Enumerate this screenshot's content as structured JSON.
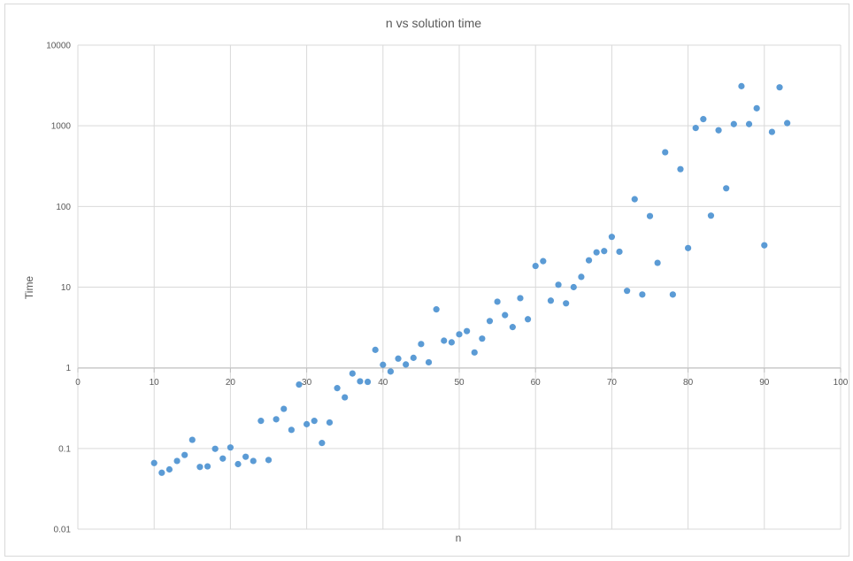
{
  "chart_data": {
    "type": "scatter",
    "title": "n vs solution time",
    "xlabel": "n",
    "ylabel": "Time",
    "xlim": [
      0,
      100
    ],
    "ylim": [
      0.01,
      10000
    ],
    "yscale": "log",
    "grid": true,
    "legend": "none",
    "xticks": [
      "0",
      "10",
      "20",
      "30",
      "40",
      "50",
      "60",
      "70",
      "80",
      "90",
      "100"
    ],
    "yticks": [
      "0.01",
      "0.1",
      "1",
      "10",
      "100",
      "1000",
      "10000"
    ],
    "marker_color": "#5b9bd5",
    "points": [
      {
        "x": 10,
        "y": 0.066
      },
      {
        "x": 11,
        "y": 0.05
      },
      {
        "x": 12,
        "y": 0.055
      },
      {
        "x": 13,
        "y": 0.07
      },
      {
        "x": 14,
        "y": 0.083
      },
      {
        "x": 15,
        "y": 0.128
      },
      {
        "x": 16,
        "y": 0.059
      },
      {
        "x": 17,
        "y": 0.06
      },
      {
        "x": 18,
        "y": 0.099
      },
      {
        "x": 19,
        "y": 0.075
      },
      {
        "x": 20,
        "y": 0.103
      },
      {
        "x": 21,
        "y": 0.064
      },
      {
        "x": 22,
        "y": 0.079
      },
      {
        "x": 23,
        "y": 0.07
      },
      {
        "x": 24,
        "y": 0.22
      },
      {
        "x": 25,
        "y": 0.072
      },
      {
        "x": 26,
        "y": 0.23
      },
      {
        "x": 27,
        "y": 0.31
      },
      {
        "x": 28,
        "y": 0.17
      },
      {
        "x": 29,
        "y": 0.62
      },
      {
        "x": 30,
        "y": 0.2
      },
      {
        "x": 31,
        "y": 0.22
      },
      {
        "x": 32,
        "y": 0.117
      },
      {
        "x": 33,
        "y": 0.21
      },
      {
        "x": 34,
        "y": 0.56
      },
      {
        "x": 35,
        "y": 0.43
      },
      {
        "x": 36,
        "y": 0.85
      },
      {
        "x": 37,
        "y": 0.68
      },
      {
        "x": 38,
        "y": 0.67
      },
      {
        "x": 39,
        "y": 1.67
      },
      {
        "x": 40,
        "y": 1.09
      },
      {
        "x": 41,
        "y": 0.9
      },
      {
        "x": 42,
        "y": 1.3
      },
      {
        "x": 43,
        "y": 1.1
      },
      {
        "x": 44,
        "y": 1.33
      },
      {
        "x": 45,
        "y": 1.97
      },
      {
        "x": 46,
        "y": 1.17
      },
      {
        "x": 47,
        "y": 5.3
      },
      {
        "x": 48,
        "y": 2.17
      },
      {
        "x": 49,
        "y": 2.07
      },
      {
        "x": 50,
        "y": 2.6
      },
      {
        "x": 51,
        "y": 2.85
      },
      {
        "x": 52,
        "y": 1.55
      },
      {
        "x": 53,
        "y": 2.3
      },
      {
        "x": 54,
        "y": 3.8
      },
      {
        "x": 55,
        "y": 6.6
      },
      {
        "x": 56,
        "y": 4.5
      },
      {
        "x": 57,
        "y": 3.2
      },
      {
        "x": 58,
        "y": 7.3
      },
      {
        "x": 59,
        "y": 4.0
      },
      {
        "x": 60,
        "y": 18.3
      },
      {
        "x": 61,
        "y": 21
      },
      {
        "x": 62,
        "y": 6.8
      },
      {
        "x": 63,
        "y": 10.7
      },
      {
        "x": 64,
        "y": 6.3
      },
      {
        "x": 65,
        "y": 10
      },
      {
        "x": 66,
        "y": 13.4
      },
      {
        "x": 67,
        "y": 21.5
      },
      {
        "x": 68,
        "y": 27
      },
      {
        "x": 69,
        "y": 28
      },
      {
        "x": 70,
        "y": 42
      },
      {
        "x": 71,
        "y": 27.5
      },
      {
        "x": 72,
        "y": 9
      },
      {
        "x": 73,
        "y": 123
      },
      {
        "x": 74,
        "y": 8.1
      },
      {
        "x": 75,
        "y": 76
      },
      {
        "x": 76,
        "y": 20
      },
      {
        "x": 77,
        "y": 470
      },
      {
        "x": 78,
        "y": 8.1
      },
      {
        "x": 79,
        "y": 290
      },
      {
        "x": 80,
        "y": 30.5
      },
      {
        "x": 81,
        "y": 940
      },
      {
        "x": 82,
        "y": 1210
      },
      {
        "x": 83,
        "y": 77
      },
      {
        "x": 84,
        "y": 880
      },
      {
        "x": 85,
        "y": 168
      },
      {
        "x": 86,
        "y": 1050
      },
      {
        "x": 87,
        "y": 3100
      },
      {
        "x": 88,
        "y": 1050
      },
      {
        "x": 89,
        "y": 1650
      },
      {
        "x": 90,
        "y": 33
      },
      {
        "x": 91,
        "y": 840
      },
      {
        "x": 92,
        "y": 3000
      },
      {
        "x": 93,
        "y": 1080
      }
    ]
  }
}
